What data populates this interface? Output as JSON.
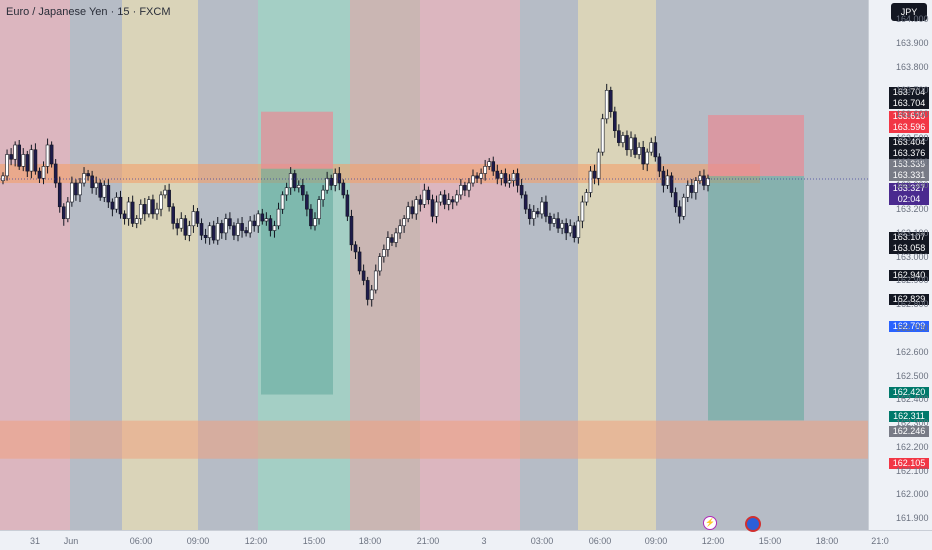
{
  "chart_title": "Euro / Japanese Yen · 15 · FXCM",
  "currency_button": "JPY",
  "price_ticks": [
    "164.000",
    "163.900",
    "163.800",
    "163.700",
    "163.600",
    "163.500",
    "163.400",
    "163.300",
    "163.200",
    "163.100",
    "163.000",
    "162.900",
    "162.800",
    "162.700",
    "162.600",
    "162.500",
    "162.400",
    "162.300",
    "162.200",
    "162.100",
    "162.000",
    "161.900"
  ],
  "time_ticks": [
    "31",
    "Jun",
    "06:00",
    "09:00",
    "12:00",
    "15:00",
    "18:00",
    "21:00",
    "3",
    "03:00",
    "06:00",
    "09:00",
    "12:00",
    "15:00",
    "18:00",
    "21:0"
  ],
  "price_labels": [
    {
      "text": "163.704",
      "color": "#131722"
    },
    {
      "text": "163.704",
      "color": "#131722"
    },
    {
      "text": "163.610",
      "color": "#f23645"
    },
    {
      "text": "163.596",
      "color": "#f23645"
    },
    {
      "text": "163.404",
      "color": "#131722"
    },
    {
      "text": "163.376",
      "color": "#131722"
    },
    {
      "text": "163.339",
      "color": "#787b86"
    },
    {
      "text": "163.331",
      "color": "#787b86"
    },
    {
      "text": "163.107",
      "color": "#131722"
    },
    {
      "text": "163.058",
      "color": "#131722"
    },
    {
      "text": "162.940",
      "color": "#131722"
    },
    {
      "text": "162.829",
      "color": "#131722"
    },
    {
      "text": "162.709",
      "color": "#2962ff"
    },
    {
      "text": "162.420",
      "color": "#00796b"
    },
    {
      "text": "162.311",
      "color": "#00796b"
    },
    {
      "text": "162.246",
      "color": "#787b86"
    },
    {
      "text": "162.105",
      "color": "#f23645"
    }
  ],
  "current_price": {
    "price": "163.327",
    "countdown": "02:04",
    "color": "#4a2a8f"
  },
  "events": [
    "lightning-icon",
    "economic-event-icon"
  ],
  "chart_data": {
    "type": "candlestick",
    "symbol": "Euro / Japanese Yen",
    "interval": "15",
    "source": "FXCM",
    "ylim": [
      161.85,
      164.08
    ],
    "current_price": 163.327,
    "closes": [
      163.34,
      163.43,
      163.41,
      163.47,
      163.38,
      163.43,
      163.36,
      163.45,
      163.36,
      163.33,
      163.38,
      163.47,
      163.39,
      163.31,
      163.21,
      163.16,
      163.23,
      163.31,
      163.26,
      163.31,
      163.35,
      163.34,
      163.29,
      163.31,
      163.25,
      163.3,
      163.23,
      163.2,
      163.25,
      163.18,
      163.16,
      163.23,
      163.14,
      163.16,
      163.22,
      163.18,
      163.24,
      163.18,
      163.2,
      163.26,
      163.28,
      163.21,
      163.14,
      163.12,
      163.16,
      163.09,
      163.13,
      163.19,
      163.14,
      163.09,
      163.08,
      163.13,
      163.07,
      163.14,
      163.1,
      163.16,
      163.13,
      163.09,
      163.14,
      163.11,
      163.1,
      163.15,
      163.13,
      163.18,
      163.15,
      163.16,
      163.11,
      163.13,
      163.2,
      163.26,
      163.29,
      163.35,
      163.29,
      163.3,
      163.26,
      163.2,
      163.13,
      163.16,
      163.24,
      163.28,
      163.33,
      163.3,
      163.35,
      163.31,
      163.26,
      163.17,
      163.05,
      163.02,
      162.94,
      162.9,
      162.82,
      162.86,
      162.94,
      163.0,
      163.03,
      163.08,
      163.06,
      163.1,
      163.13,
      163.16,
      163.21,
      163.18,
      163.24,
      163.22,
      163.28,
      163.24,
      163.17,
      163.23,
      163.26,
      163.22,
      163.24,
      163.23,
      163.26,
      163.3,
      163.28,
      163.31,
      163.34,
      163.33,
      163.35,
      163.38,
      163.4,
      163.36,
      163.33,
      163.35,
      163.31,
      163.32,
      163.35,
      163.3,
      163.26,
      163.2,
      163.16,
      163.19,
      163.18,
      163.23,
      163.17,
      163.14,
      163.16,
      163.12,
      163.14,
      163.1,
      163.13,
      163.08,
      163.15,
      163.23,
      163.27,
      163.36,
      163.33,
      163.44,
      163.58,
      163.7,
      163.61,
      163.53,
      163.48,
      163.51,
      163.45,
      163.5,
      163.43,
      163.46,
      163.39,
      163.44,
      163.48,
      163.42,
      163.36,
      163.3,
      163.34,
      163.27,
      163.21,
      163.17,
      163.25,
      163.3,
      163.27,
      163.32,
      163.34,
      163.3,
      163.33
    ]
  },
  "drawings": {
    "sessions": [
      {
        "color": "#e8b4bc"
      },
      {
        "color": "#b6bcc6"
      },
      {
        "color": "#e6dcb4"
      },
      {
        "color": "#b6bcc6"
      },
      {
        "color": "#9ed6c4"
      },
      {
        "color": "#b6bcc6"
      },
      {
        "color": "#d0b4ac"
      },
      {
        "color": "#e8b4bc"
      },
      {
        "color": "#b6bcc6"
      },
      {
        "color": "#e6dcb4"
      },
      {
        "color": "#b6bcc6"
      }
    ],
    "zones": [
      {
        "kind": "resistance-line",
        "from": 163.39,
        "to": 163.31
      },
      {
        "kind": "support-zone",
        "from": 162.31,
        "to": 162.15
      },
      {
        "kind": "short-1-stop",
        "from": 163.61,
        "to": 163.37
      },
      {
        "kind": "short-1-target",
        "from": 163.37,
        "to": 162.42
      },
      {
        "kind": "short-2-stop",
        "from": 163.596,
        "to": 163.339
      },
      {
        "kind": "short-2-target",
        "from": 163.339,
        "to": 162.311
      }
    ]
  }
}
